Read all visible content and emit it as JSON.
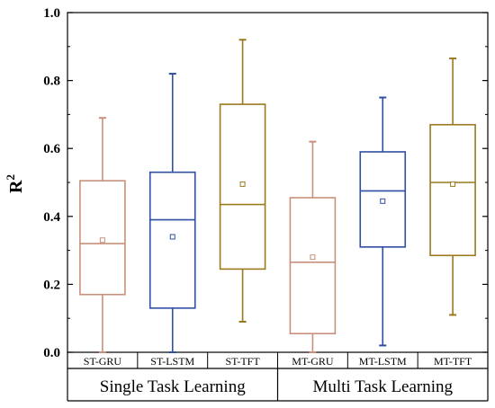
{
  "chart_data": {
    "type": "box",
    "ylabel": "R",
    "ylabel_superscript": "2",
    "ylim": [
      0.0,
      1.0
    ],
    "yticks": [
      {
        "value": 0.0,
        "label": "0.0"
      },
      {
        "value": 0.2,
        "label": "0.2"
      },
      {
        "value": 0.4,
        "label": "0.4"
      },
      {
        "value": 0.6,
        "label": "0.6"
      },
      {
        "value": 0.8,
        "label": "0.8"
      },
      {
        "value": 1.0,
        "label": "1.0"
      }
    ],
    "categories": [
      "ST-GRU",
      "ST-LSTM",
      "ST-TFT",
      "MT-GRU",
      "MT-LSTM",
      "MT-TFT"
    ],
    "groups": [
      {
        "label": "Single Task Learning",
        "categories": [
          "ST-GRU",
          "ST-LSTM",
          "ST-TFT"
        ]
      },
      {
        "label": "Multi Task Learning",
        "categories": [
          "MT-GRU",
          "MT-LSTM",
          "MT-TFT"
        ]
      }
    ],
    "boxes": [
      {
        "name": "ST-GRU",
        "min": 0.0,
        "q1": 0.17,
        "median": 0.32,
        "q3": 0.505,
        "max": 0.69,
        "mean": 0.33,
        "color": "#c8907c"
      },
      {
        "name": "ST-LSTM",
        "min": 0.0,
        "q1": 0.13,
        "median": 0.39,
        "q3": 0.53,
        "max": 0.82,
        "mean": 0.34,
        "color": "#2f4fa3"
      },
      {
        "name": "ST-TFT",
        "min": 0.09,
        "q1": 0.245,
        "median": 0.435,
        "q3": 0.73,
        "max": 0.92,
        "mean": 0.495,
        "color": "#9a7a1c"
      },
      {
        "name": "MT-GRU",
        "min": 0.0,
        "q1": 0.055,
        "median": 0.265,
        "q3": 0.455,
        "max": 0.62,
        "mean": 0.28,
        "color": "#c8907c"
      },
      {
        "name": "MT-LSTM",
        "min": 0.02,
        "q1": 0.31,
        "median": 0.475,
        "q3": 0.59,
        "max": 0.75,
        "mean": 0.445,
        "color": "#2f4fa3"
      },
      {
        "name": "MT-TFT",
        "min": 0.11,
        "q1": 0.285,
        "median": 0.5,
        "q3": 0.67,
        "max": 0.865,
        "mean": 0.495,
        "color": "#9a7a1c"
      }
    ],
    "grid": false
  }
}
